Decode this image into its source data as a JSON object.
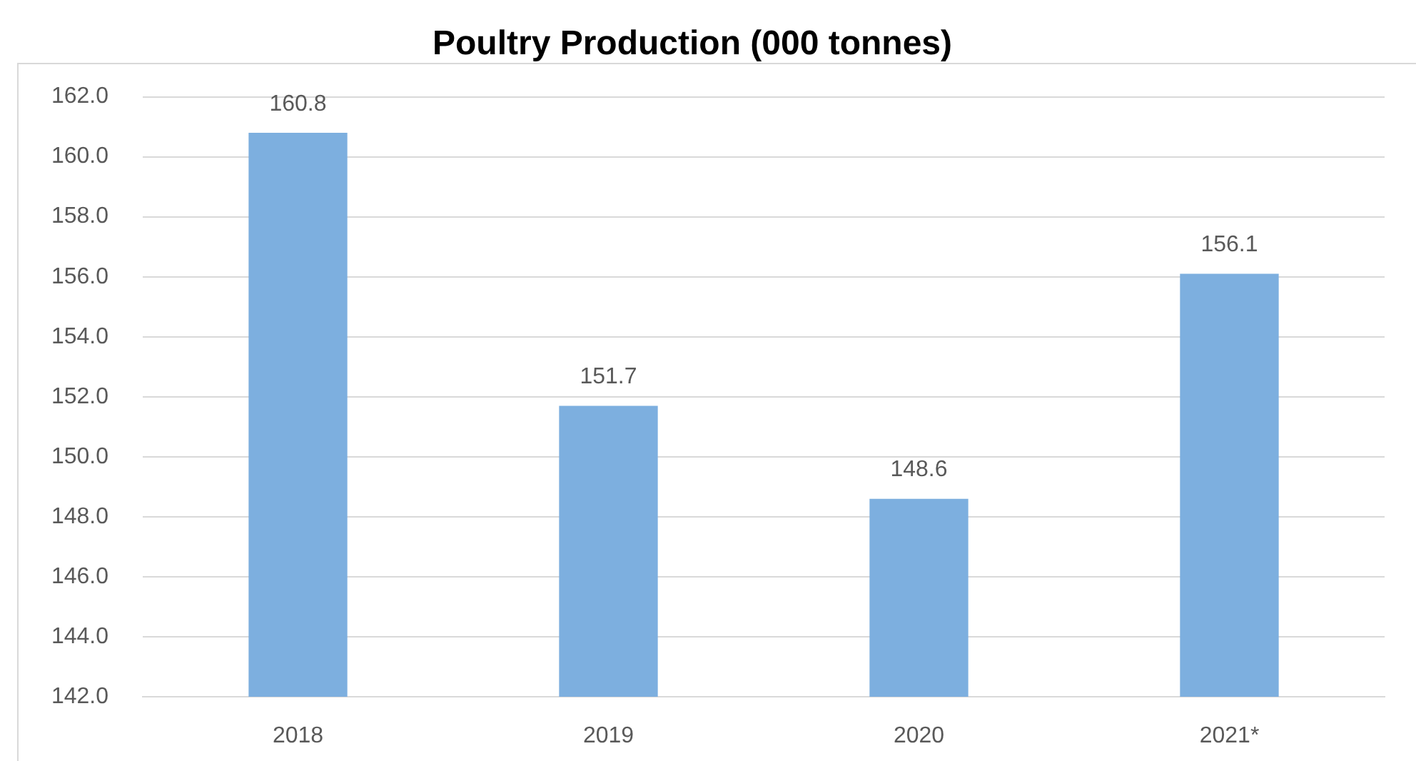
{
  "chart_data": {
    "type": "bar",
    "title": "Poultry Production (000 tonnes)",
    "categories": [
      "2018",
      "2019",
      "2020",
      "2021*"
    ],
    "values": [
      160.8,
      151.7,
      148.6,
      156.1
    ],
    "color": "#7dafdf",
    "ylim": [
      142,
      162
    ],
    "yticks": [
      {
        "value": 142,
        "label": "142.0"
      },
      {
        "value": 144,
        "label": "144.0"
      },
      {
        "value": 146,
        "label": "146.0"
      },
      {
        "value": 148,
        "label": "148.0"
      },
      {
        "value": 150,
        "label": "150.0"
      },
      {
        "value": 152,
        "label": "152.0"
      },
      {
        "value": 154,
        "label": "154.0"
      },
      {
        "value": 156,
        "label": "156.0"
      },
      {
        "value": 158,
        "label": "158.0"
      },
      {
        "value": 160,
        "label": "160.0"
      },
      {
        "value": 162,
        "label": "162.0"
      }
    ],
    "grid": "y",
    "data_labels": true
  }
}
